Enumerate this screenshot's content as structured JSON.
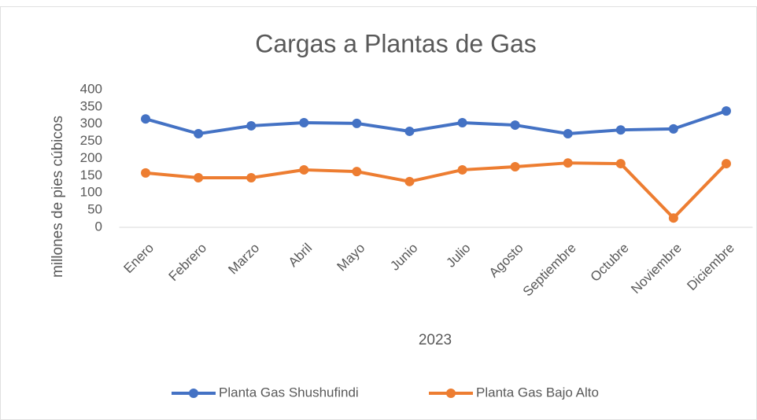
{
  "chart_data": {
    "type": "line",
    "title": "Cargas a Plantas de Gas",
    "x_label": "2023",
    "y_label": "millones de pies cúbicos",
    "categories": [
      "Enero",
      "Febrero",
      "Marzo",
      "Abril",
      "Mayo",
      "Junio",
      "Julio",
      "Agosto",
      "Septiembre",
      "Octubre",
      "Noviembre",
      "Diciembre"
    ],
    "series": [
      {
        "name": "Planta Gas Shushufindi",
        "color": "#4472c4",
        "values": [
          315,
          272,
          295,
          304,
          302,
          279,
          304,
          297,
          272,
          283,
          286,
          338
        ]
      },
      {
        "name": "Planta Gas Bajo Alto",
        "color": "#ed7d31",
        "values": [
          158,
          144,
          144,
          167,
          162,
          133,
          167,
          176,
          187,
          185,
          27,
          185
        ]
      }
    ],
    "ylim": [
      0,
      400
    ],
    "yticks": [
      0,
      50,
      100,
      150,
      200,
      250,
      300,
      350,
      400
    ],
    "grid": false,
    "legend": "bottom"
  }
}
